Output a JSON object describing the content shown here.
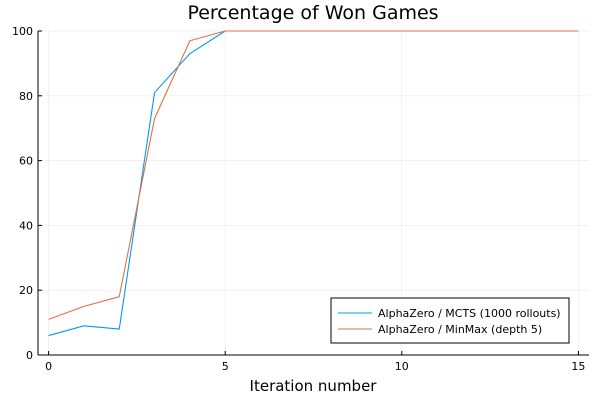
{
  "chart_data": {
    "type": "line",
    "title": "Percentage of Won Games",
    "xlabel": "Iteration number",
    "ylabel": "",
    "xlim": [
      -0.3,
      15.3
    ],
    "ylim": [
      0,
      100
    ],
    "xticks": [
      0,
      5,
      10,
      15
    ],
    "yticks": [
      0,
      20,
      40,
      60,
      80,
      100
    ],
    "grid": true,
    "legend_position": "bottom-right",
    "series": [
      {
        "name": "AlphaZero / MCTS (1000 rollouts)",
        "color": "#009AFA",
        "x": [
          0,
          1,
          2,
          3,
          4,
          5,
          6,
          7,
          8,
          9,
          10,
          11,
          12,
          13,
          14,
          15
        ],
        "y": [
          6,
          9,
          8,
          81,
          93,
          100,
          100,
          100,
          100,
          100,
          100,
          100,
          100,
          100,
          100,
          100
        ]
      },
      {
        "name": "AlphaZero / MinMax (depth 5)",
        "color": "#E26F46",
        "x": [
          0,
          1,
          2,
          3,
          4,
          5,
          6,
          7,
          8,
          9,
          10,
          11,
          12,
          13,
          14,
          15
        ],
        "y": [
          11,
          15,
          18,
          73,
          97,
          100,
          100,
          100,
          100,
          100,
          100,
          100,
          100,
          100,
          100,
          100
        ]
      }
    ]
  }
}
